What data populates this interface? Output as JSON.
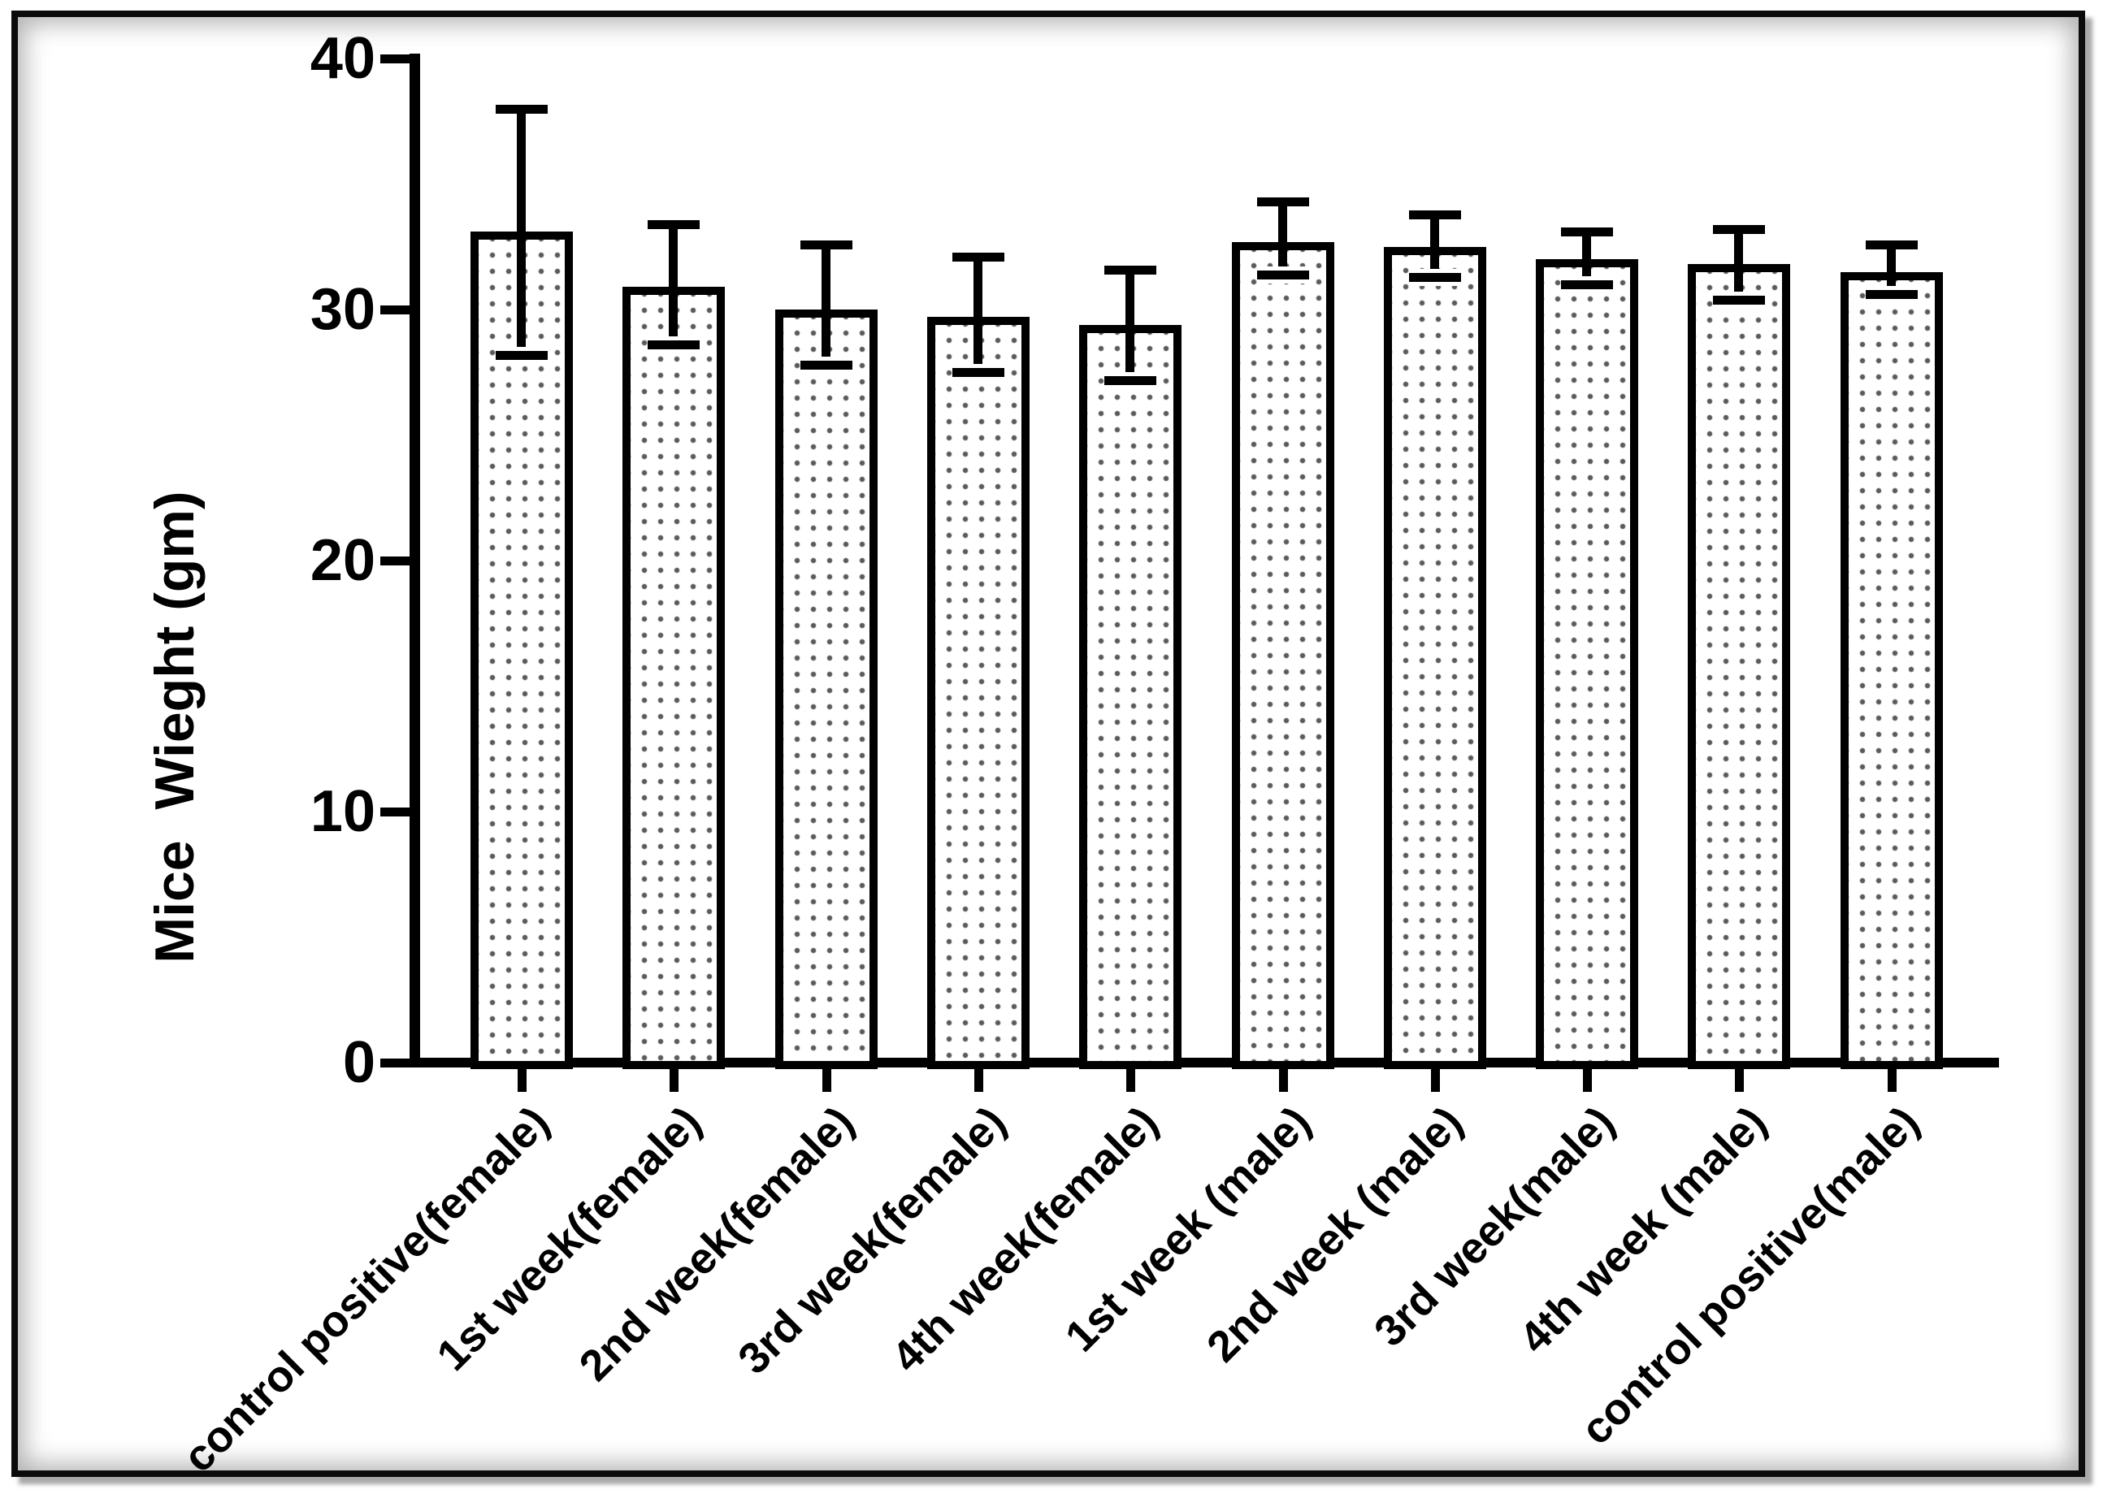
{
  "chart_data": {
    "type": "bar",
    "title": "",
    "ylabel": "Mice  Wieght (gm)",
    "xlabel": "",
    "categories": [
      "control positive(female)",
      "1st week(female)",
      "2nd week(female)",
      "3rd week(female)",
      "4th week(female)",
      "1st week (male)",
      "2nd week (male)",
      "3rd week(male)",
      "4th week (male)",
      "control positive(male)"
    ],
    "values": [
      33.1,
      30.9,
      30.0,
      29.7,
      29.4,
      32.7,
      32.5,
      32.0,
      31.8,
      31.5
    ],
    "error_high": [
      38.0,
      33.4,
      32.6,
      32.1,
      31.6,
      34.3,
      33.8,
      33.1,
      33.2,
      32.6
    ],
    "error_low": [
      28.2,
      28.6,
      27.8,
      27.5,
      27.2,
      31.4,
      31.3,
      31.0,
      30.4,
      30.6
    ],
    "yticks": [
      0,
      10,
      20,
      30,
      40
    ],
    "ylim": [
      0,
      40
    ],
    "grid": false,
    "legend": false,
    "axis_color": "#000000",
    "bar_outline_color": "#000000",
    "bar_fill": "white with gray dot pattern",
    "error_bar_color": "#000000",
    "frame_color": "#0b0b0b",
    "background_color": "#ffffff"
  }
}
